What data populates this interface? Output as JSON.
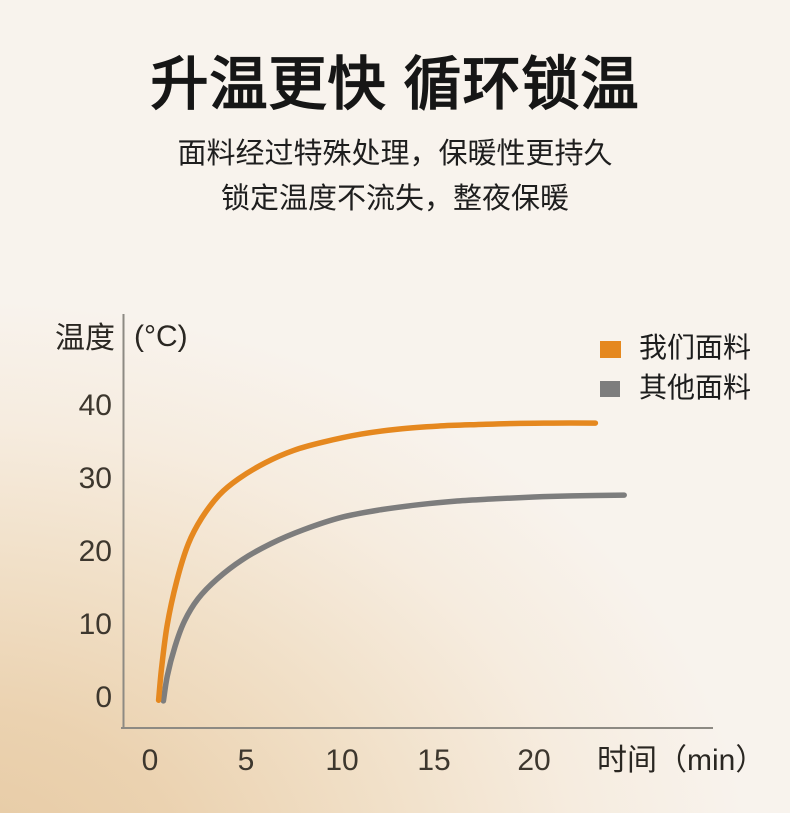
{
  "header": {
    "title": "升温更快 循环锁温",
    "subtitle_line1": "面料经过特殊处理，保暖性更持久",
    "subtitle_line2": "锁定温度不流失，整夜保暖"
  },
  "chart_data": {
    "type": "line",
    "title": "",
    "xlabel": "时间（min）",
    "ylabel": "温度",
    "ylabel_unit": "(°C)",
    "xlim": [
      0,
      25
    ],
    "ylim": [
      0,
      45
    ],
    "xticks": [
      "0",
      "5",
      "10",
      "15",
      "20"
    ],
    "yticks": [
      "40",
      "30",
      "20",
      "10",
      "0"
    ],
    "grid": false,
    "legend_position": "top-right",
    "series": [
      {
        "name": "我们面料",
        "color": "#E5881F",
        "x": [
          0.45,
          0.6,
          0.9,
          1.4,
          2,
          2.7,
          3.6,
          4.6,
          6,
          7.5,
          9,
          11,
          13,
          15,
          17,
          19,
          21,
          23.2
        ],
        "y": [
          -0.3,
          4,
          10,
          16,
          21,
          24.5,
          27.6,
          29.8,
          32,
          33.7,
          34.8,
          35.9,
          36.6,
          37,
          37.2,
          37.35,
          37.4,
          37.4
        ]
      },
      {
        "name": "其他面料",
        "color": "#7D7D7D",
        "x": [
          0.7,
          0.9,
          1.3,
          1.8,
          2.5,
          3.5,
          4.8,
          6.3,
          8,
          10,
          12,
          14,
          16,
          18,
          20,
          22,
          24.7
        ],
        "y": [
          -0.4,
          3,
          7,
          10.5,
          13.5,
          16.2,
          18.8,
          21,
          22.9,
          24.6,
          25.6,
          26.3,
          26.8,
          27.1,
          27.35,
          27.5,
          27.6
        ]
      }
    ]
  },
  "colors": {
    "accent_orange": "#E5881F",
    "neutral_gray": "#7D7D7D",
    "background_cream": "#F8F3ED",
    "background_tan": "#E6C9A2"
  }
}
